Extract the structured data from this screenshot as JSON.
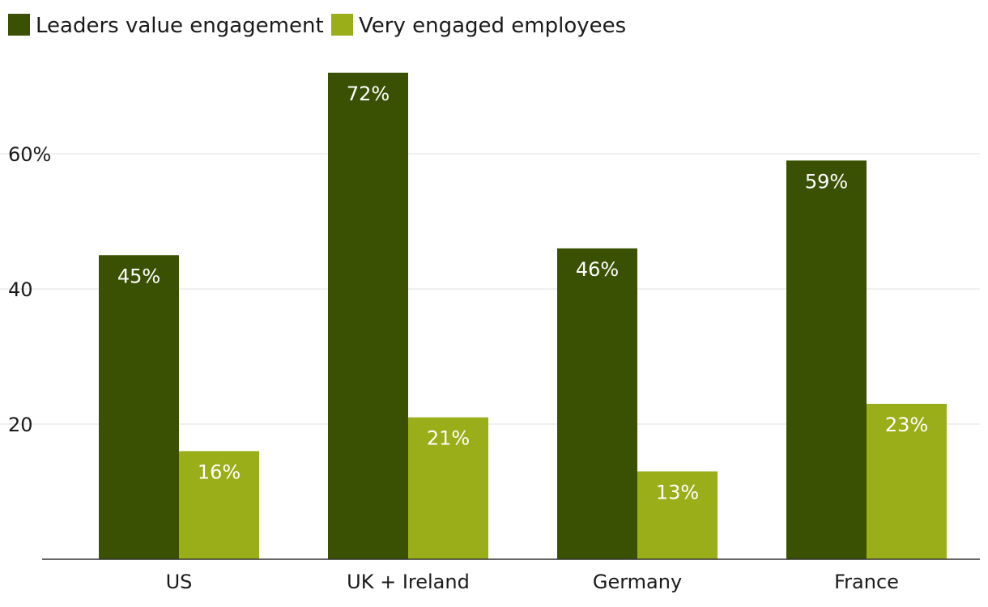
{
  "chart_data": {
    "type": "bar",
    "categories": [
      "US",
      "UK + Ireland",
      "Germany",
      "France"
    ],
    "series": [
      {
        "name": "Leaders value engagement",
        "values": [
          45,
          72,
          46,
          59
        ],
        "labels": [
          "45%",
          "72%",
          "46%",
          "59%"
        ],
        "color": "#3a5104"
      },
      {
        "name": "Very engaged employees",
        "values": [
          16,
          21,
          13,
          23
        ],
        "labels": [
          "16%",
          "21%",
          "13%",
          "23%"
        ],
        "color": "#9aae19"
      }
    ],
    "yticks": [
      {
        "value": 20,
        "label": "20"
      },
      {
        "value": 40,
        "label": "40"
      },
      {
        "value": 60,
        "label": "60%"
      }
    ],
    "ylim": [
      0,
      80
    ],
    "grid": true,
    "legend_position": "top-left",
    "title": "",
    "xlabel": "",
    "ylabel": ""
  }
}
